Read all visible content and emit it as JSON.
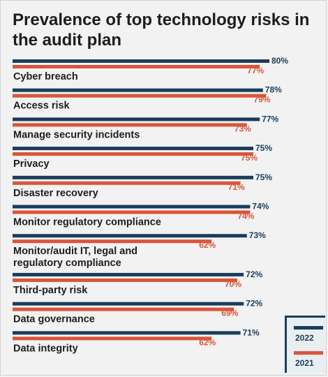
{
  "title": "Prevalence of top technology risks in the audit plan",
  "colors": {
    "y2022": "#1a3d5c",
    "y2021": "#d9553a",
    "label": "#1d1d1f"
  },
  "chart_data": {
    "type": "bar",
    "orientation": "horizontal",
    "title": "Prevalence of top technology risks in the audit plan",
    "xlim": [
      0,
      100
    ],
    "grid": false,
    "legend_position": "bottom-right",
    "categories": [
      "Cyber breach",
      "Access risk",
      "Manage security incidents",
      "Privacy",
      "Disaster recovery",
      "Monitor regulatory compliance",
      "Monitor/audit IT, legal and regulatory compliance",
      "Third-party risk",
      "Data governance",
      "Data integrity"
    ],
    "category_lines": [
      [
        "Cyber breach"
      ],
      [
        "Access risk"
      ],
      [
        "Manage security incidents"
      ],
      [
        "Privacy"
      ],
      [
        "Disaster recovery"
      ],
      [
        "Monitor regulatory compliance"
      ],
      [
        "Monitor/audit IT, legal and",
        "regulatory compliance"
      ],
      [
        "Third-party risk"
      ],
      [
        "Data governance"
      ],
      [
        "Data integrity"
      ]
    ],
    "series": [
      {
        "name": "2022",
        "values": [
          80,
          78,
          77,
          75,
          75,
          74,
          73,
          72,
          72,
          71
        ]
      },
      {
        "name": "2021",
        "values": [
          77,
          79,
          73,
          75,
          71,
          74,
          62,
          70,
          69,
          62
        ]
      }
    ],
    "value_suffix": "%"
  }
}
